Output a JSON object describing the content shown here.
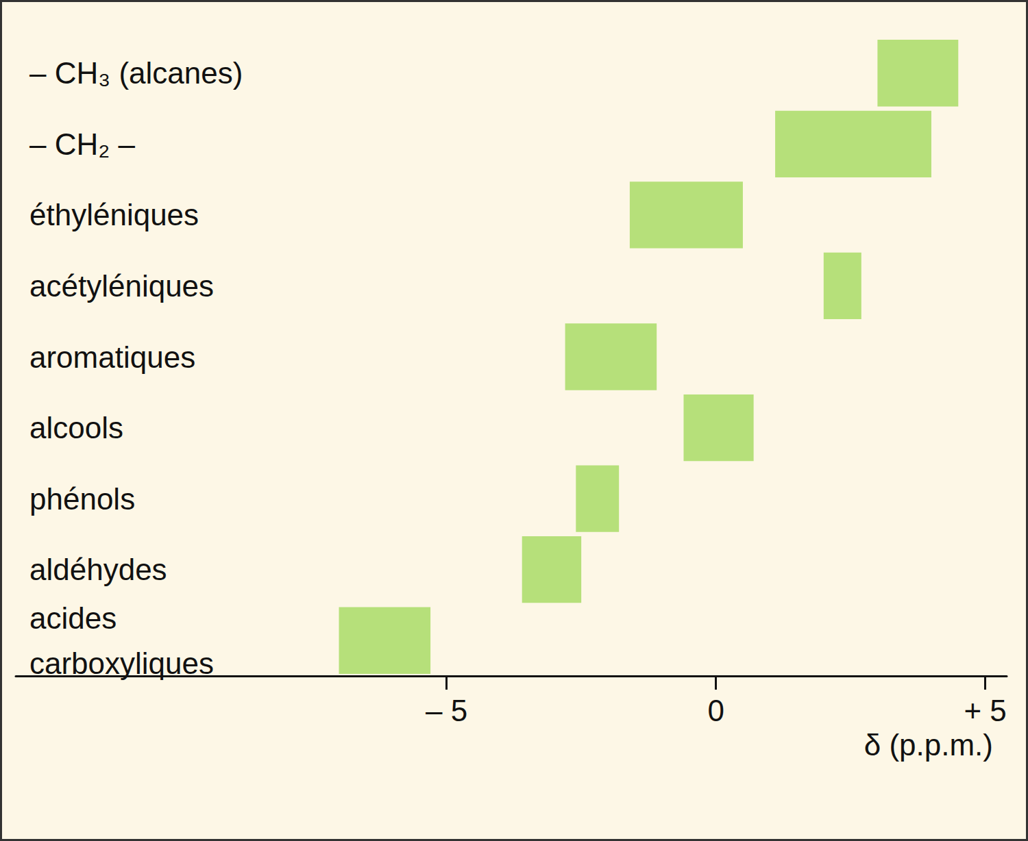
{
  "chart_data": {
    "type": "bar",
    "orientation": "horizontal",
    "categories": [
      "– CH₃ (alcanes)",
      "– CH₂ –",
      "éthyléniques",
      "acétyléniques",
      "aromatiques",
      "alcools",
      "phénols",
      "aldéhydes",
      "acides\ncarboxyliques"
    ],
    "values": [
      [
        3.0,
        4.5
      ],
      [
        1.1,
        4.0
      ],
      [
        -1.6,
        0.5
      ],
      [
        2.0,
        2.7
      ],
      [
        -2.8,
        -1.1
      ],
      [
        -0.6,
        0.7
      ],
      [
        -2.6,
        -1.8
      ],
      [
        -3.6,
        -2.5
      ],
      [
        -7.0,
        -5.3
      ]
    ],
    "color": "#b6e07a",
    "xlabel": "δ (p.p.m.)",
    "xlim": [
      -13,
      5.4
    ],
    "xticks": [
      {
        "value": -5,
        "label": "– 5"
      },
      0,
      {
        "value": 5,
        "label": "+ 5"
      }
    ],
    "grid": false
  }
}
